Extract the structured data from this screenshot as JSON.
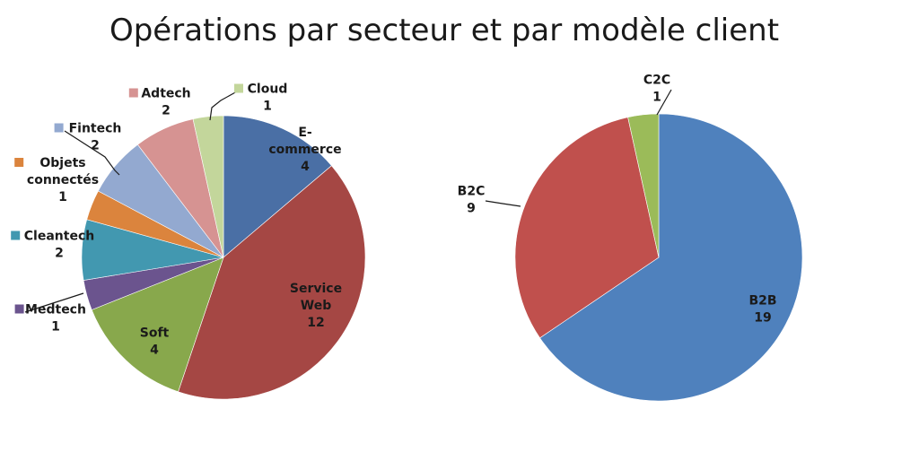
{
  "title": "Opérations par secteur et par modèle client",
  "chart_data": [
    {
      "type": "pie",
      "title": "",
      "slices": [
        {
          "label": [
            "E-",
            "commerce"
          ],
          "value": 4,
          "color": "#4A6FA5"
        },
        {
          "label": [
            "Service",
            "Web"
          ],
          "value": 12,
          "color": "#A54744"
        },
        {
          "label": [
            "Soft"
          ],
          "value": 4,
          "color": "#88A84C"
        },
        {
          "label": [
            "Medtech"
          ],
          "value": 1,
          "color": "#6B548E"
        },
        {
          "label": [
            "Cleantech"
          ],
          "value": 2,
          "color": "#4298B0"
        },
        {
          "label": [
            "Objets",
            "connectés"
          ],
          "value": 1,
          "color": "#DB843D"
        },
        {
          "label": [
            "Fintech"
          ],
          "value": 2,
          "color": "#93A9D0"
        },
        {
          "label": [
            "Adtech"
          ],
          "value": 2,
          "color": "#D69392"
        },
        {
          "label": [
            "Cloud"
          ],
          "value": 1,
          "color": "#C3D69B"
        }
      ]
    },
    {
      "type": "pie",
      "title": "",
      "slices": [
        {
          "label": [
            "B2B"
          ],
          "value": 19,
          "color": "#4F81BD"
        },
        {
          "label": [
            "B2C"
          ],
          "value": 9,
          "color": "#C0504D"
        },
        {
          "label": [
            "C2C"
          ],
          "value": 1,
          "color": "#9BBB59"
        }
      ]
    }
  ]
}
